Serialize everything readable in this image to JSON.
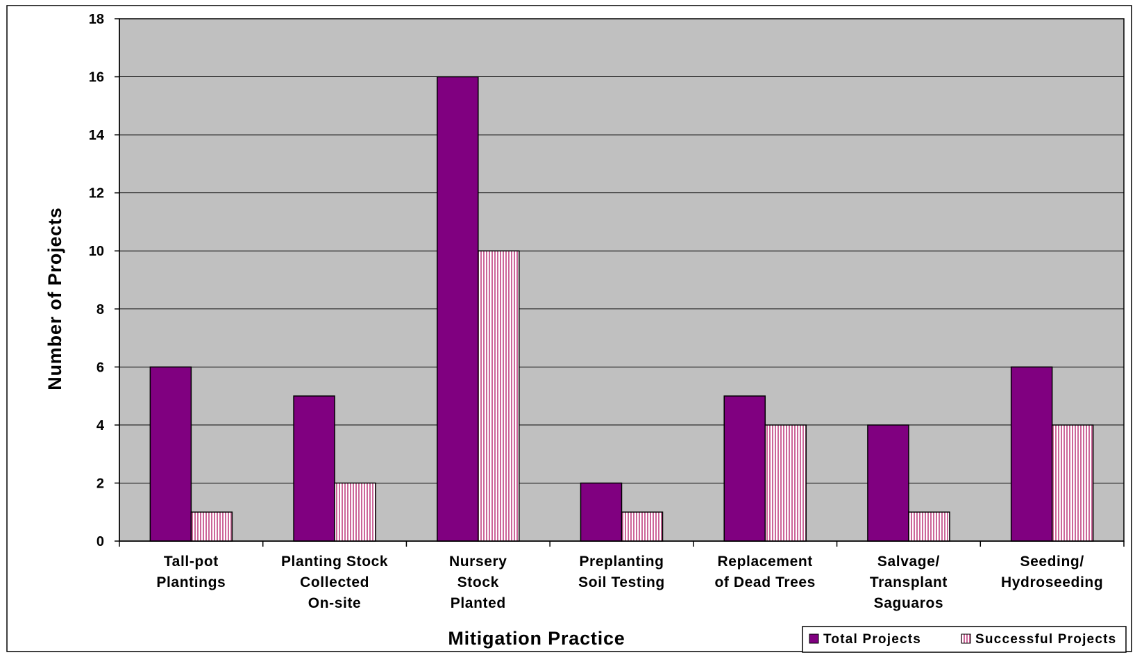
{
  "chart_data": {
    "type": "bar",
    "title": "",
    "xlabel": "Mitigation Practice",
    "ylabel": "Number of Projects",
    "ylim": [
      0,
      18
    ],
    "yticks": [
      0,
      2,
      4,
      6,
      8,
      10,
      12,
      14,
      16,
      18
    ],
    "grid": true,
    "legend_position": "bottom-right",
    "categories": [
      [
        "Tall-pot",
        "Plantings"
      ],
      [
        "Planting Stock",
        "Collected",
        "On-site"
      ],
      [
        "Nursery",
        "Stock",
        "Planted"
      ],
      [
        "Preplanting",
        "Soil Testing"
      ],
      [
        "Replacement",
        "of Dead Trees"
      ],
      [
        "Salvage/",
        "Transplant",
        "Saguaros"
      ],
      [
        "Seeding/",
        "Hydroseeding"
      ]
    ],
    "series": [
      {
        "name": "Total Projects",
        "color": "#800080",
        "pattern": "solid",
        "values": [
          6,
          5,
          16,
          2,
          5,
          4,
          6
        ]
      },
      {
        "name": "Successful Projects",
        "color": "#cc6699",
        "pattern": "vertical-stripes",
        "values": [
          1,
          2,
          10,
          1,
          4,
          1,
          4
        ]
      }
    ],
    "colors": {
      "plot_background": "#c0c0c0",
      "gridline": "#000000"
    }
  }
}
